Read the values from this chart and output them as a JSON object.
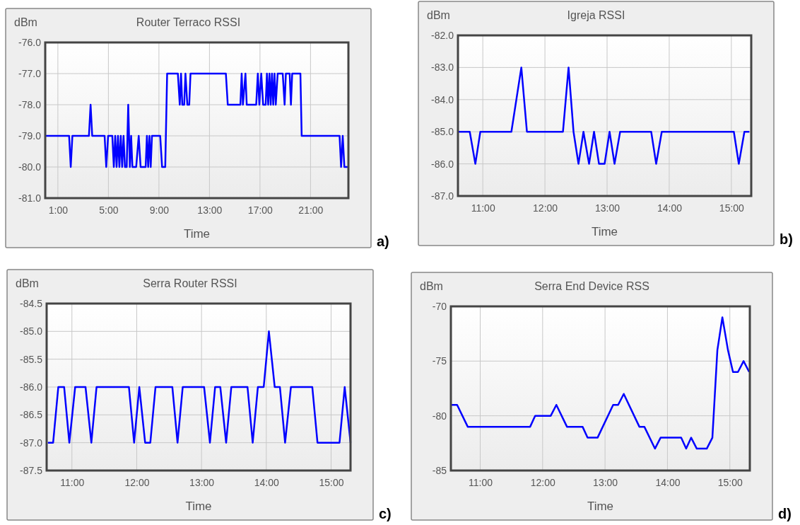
{
  "chart_data": [
    {
      "type": "line",
      "title": "Router Terraco RSSI",
      "xlabel": "Time",
      "ylabel": "dBm",
      "annotations": [
        "a)"
      ],
      "grid": true,
      "marker": "none",
      "line_style": "solid",
      "xlim": [
        0,
        24
      ],
      "xticks": [
        {
          "value": 1,
          "label": "1:00"
        },
        {
          "value": 5,
          "label": "5:00"
        },
        {
          "value": 9,
          "label": "9:00"
        },
        {
          "value": 13,
          "label": "13:00"
        },
        {
          "value": 17,
          "label": "17:00"
        },
        {
          "value": 21,
          "label": "21:00"
        }
      ],
      "ylim": [
        -81,
        -76
      ],
      "yticks": [
        {
          "value": -81,
          "label": "-81.0"
        },
        {
          "value": -80,
          "label": "-80.0"
        },
        {
          "value": -79,
          "label": "-79.0"
        },
        {
          "value": -78,
          "label": "-78.0"
        },
        {
          "value": -77,
          "label": "-77.0"
        },
        {
          "value": -76,
          "label": "-76.0"
        }
      ],
      "series": [
        {
          "color": "#0000ff",
          "x": [
            0,
            1.89,
            2.02,
            2.15,
            3.46,
            3.59,
            3.72,
            4.7,
            4.83,
            4.98,
            5.31,
            5.43,
            5.54,
            5.65,
            5.76,
            5.87,
            5.98,
            6.09,
            6.2,
            6.31,
            6.45,
            6.57,
            6.7,
            6.8,
            6.9,
            7.2,
            7.4,
            7.55,
            7.95,
            8.05,
            8.15,
            8.25,
            8.35,
            8.45,
            8.55,
            9.1,
            9.25,
            9.5,
            9.65,
            10.5,
            10.65,
            10.75,
            10.85,
            11.0,
            11.1,
            11.25,
            11.4,
            11.5,
            14.3,
            14.45,
            15.45,
            15.55,
            15.65,
            15.85,
            15.95,
            16.7,
            16.83,
            16.95,
            17.1,
            17.25,
            17.45,
            17.55,
            17.65,
            17.75,
            17.85,
            17.95,
            18.05,
            18.15,
            18.25,
            18.4,
            18.5,
            18.8,
            18.95,
            19.05,
            19.35,
            19.45,
            19.55,
            20.2,
            20.3,
            23.3,
            23.42,
            23.55,
            23.68,
            24
          ],
          "values": [
            -79,
            -79,
            -80,
            -79,
            -79,
            -78,
            -79,
            -79,
            -80,
            -79,
            -79,
            -80,
            -79,
            -80,
            -79,
            -80,
            -79,
            -80,
            -79,
            -80,
            -80,
            -78,
            -80,
            -79,
            -80,
            -80,
            -79,
            -80,
            -80,
            -79,
            -80,
            -79,
            -80,
            -79,
            -79,
            -79,
            -80,
            -80,
            -77,
            -77,
            -78,
            -77,
            -78,
            -78,
            -77,
            -78,
            -78,
            -77,
            -77,
            -78,
            -78,
            -77,
            -78,
            -77,
            -78,
            -78,
            -77,
            -78,
            -77,
            -78,
            -78,
            -77,
            -78,
            -77,
            -78,
            -77,
            -78,
            -77,
            -78,
            -77,
            -77,
            -77,
            -78,
            -77,
            -77,
            -78,
            -77,
            -77,
            -79,
            -79,
            -80,
            -79,
            -80,
            -80
          ]
        }
      ]
    },
    {
      "type": "line",
      "title": "Igreja RSSI",
      "xlabel": "Time",
      "ylabel": "dBm",
      "annotations": [
        "b)"
      ],
      "grid": true,
      "marker": "none",
      "line_style": "solid",
      "xlim": [
        10.6,
        15.32
      ],
      "xticks": [
        {
          "value": 11,
          "label": "11:00"
        },
        {
          "value": 12,
          "label": "12:00"
        },
        {
          "value": 13,
          "label": "13:00"
        },
        {
          "value": 14,
          "label": "14:00"
        },
        {
          "value": 15,
          "label": "15:00"
        }
      ],
      "ylim": [
        -87,
        -82
      ],
      "yticks": [
        {
          "value": -87,
          "label": "-87.0"
        },
        {
          "value": -86,
          "label": "-86.0"
        },
        {
          "value": -85,
          "label": "-85.0"
        },
        {
          "value": -84,
          "label": "-84.0"
        },
        {
          "value": -83,
          "label": "-83.0"
        },
        {
          "value": -82,
          "label": "-82.0"
        }
      ],
      "series": [
        {
          "color": "#0000ff",
          "x": [
            10.6,
            10.79,
            10.88,
            10.96,
            11.46,
            11.62,
            11.71,
            12.29,
            12.38,
            12.46,
            12.54,
            12.62,
            12.71,
            12.79,
            12.87,
            12.96,
            13.04,
            13.12,
            13.21,
            13.71,
            13.79,
            13.88,
            15.04,
            15.12,
            15.21,
            15.29
          ],
          "values": [
            -85,
            -85,
            -86,
            -85,
            -85,
            -83,
            -85,
            -85,
            -83,
            -85,
            -86,
            -85,
            -86,
            -85,
            -86,
            -86,
            -85,
            -86,
            -85,
            -85,
            -86,
            -85,
            -85,
            -86,
            -85,
            -85
          ]
        }
      ]
    },
    {
      "type": "line",
      "title": "Serra Router RSSI",
      "xlabel": "Time",
      "ylabel": "dBm",
      "annotations": [
        "c)"
      ],
      "grid": true,
      "marker": "none",
      "line_style": "solid",
      "xlim": [
        10.61,
        15.3
      ],
      "xticks": [
        {
          "value": 11,
          "label": "11:00"
        },
        {
          "value": 12,
          "label": "12:00"
        },
        {
          "value": 13,
          "label": "13:00"
        },
        {
          "value": 14,
          "label": "14:00"
        },
        {
          "value": 15,
          "label": "15:00"
        }
      ],
      "ylim": [
        -87.5,
        -84.5
      ],
      "yticks": [
        {
          "value": -87.5,
          "label": "-87.5"
        },
        {
          "value": -87,
          "label": "-87.0"
        },
        {
          "value": -86.5,
          "label": "-86.5"
        },
        {
          "value": -86,
          "label": "-86.0"
        },
        {
          "value": -85.5,
          "label": "-85.5"
        },
        {
          "value": -85,
          "label": "-85.0"
        },
        {
          "value": -84.5,
          "label": "-84.5"
        }
      ],
      "series": [
        {
          "color": "#0000ff",
          "x": [
            10.63,
            10.71,
            10.79,
            10.88,
            10.96,
            11.05,
            11.21,
            11.3,
            11.38,
            11.88,
            11.96,
            12.04,
            12.13,
            12.21,
            12.29,
            12.55,
            12.63,
            12.71,
            13.04,
            13.13,
            13.21,
            13.29,
            13.38,
            13.46,
            13.71,
            13.79,
            13.87,
            13.96,
            14.04,
            14.13,
            14.21,
            14.29,
            14.38,
            14.71,
            14.79,
            15.13,
            15.21,
            15.3
          ],
          "values": [
            -87,
            -87,
            -86,
            -86,
            -87,
            -86,
            -86,
            -87,
            -86,
            -86,
            -87,
            -86,
            -87,
            -87,
            -86,
            -86,
            -87,
            -86,
            -86,
            -87,
            -86,
            -86,
            -87,
            -86,
            -86,
            -87,
            -86,
            -86,
            -85,
            -86,
            -86,
            -87,
            -86,
            -86,
            -87,
            -87,
            -86,
            -87
          ]
        }
      ]
    },
    {
      "type": "line",
      "title": "Serra End Device RSS",
      "xlabel": "Time",
      "ylabel": "dBm",
      "annotations": [
        "d)"
      ],
      "grid": true,
      "marker": "none",
      "line_style": "solid",
      "xlim": [
        10.53,
        15.32
      ],
      "xticks": [
        {
          "value": 11,
          "label": "11:00"
        },
        {
          "value": 12,
          "label": "12:00"
        },
        {
          "value": 13,
          "label": "13:00"
        },
        {
          "value": 14,
          "label": "14:00"
        },
        {
          "value": 15,
          "label": "15:00"
        }
      ],
      "ylim": [
        -85,
        -70
      ],
      "yticks": [
        -85,
        -80,
        -75,
        -70
      ],
      "series": [
        {
          "color": "#0000ff",
          "x": [
            10.54,
            10.63,
            10.8,
            11.8,
            11.88,
            12.13,
            12.22,
            12.39,
            12.64,
            12.72,
            12.88,
            13.13,
            13.21,
            13.3,
            13.55,
            13.63,
            13.8,
            13.89,
            14.22,
            14.3,
            14.38,
            14.47,
            14.63,
            14.72,
            14.8,
            14.88,
            14.97,
            15.05,
            15.13,
            15.22,
            15.31
          ],
          "values": [
            -79,
            -79,
            -81,
            -81,
            -80,
            -80,
            -79,
            -81,
            -81,
            -82,
            -82,
            -79,
            -79,
            -78,
            -81,
            -81,
            -83,
            -82,
            -82,
            -83,
            -82,
            -83,
            -83,
            -82,
            -74,
            -71,
            -74,
            -76,
            -76,
            -75,
            -76
          ]
        }
      ]
    }
  ]
}
